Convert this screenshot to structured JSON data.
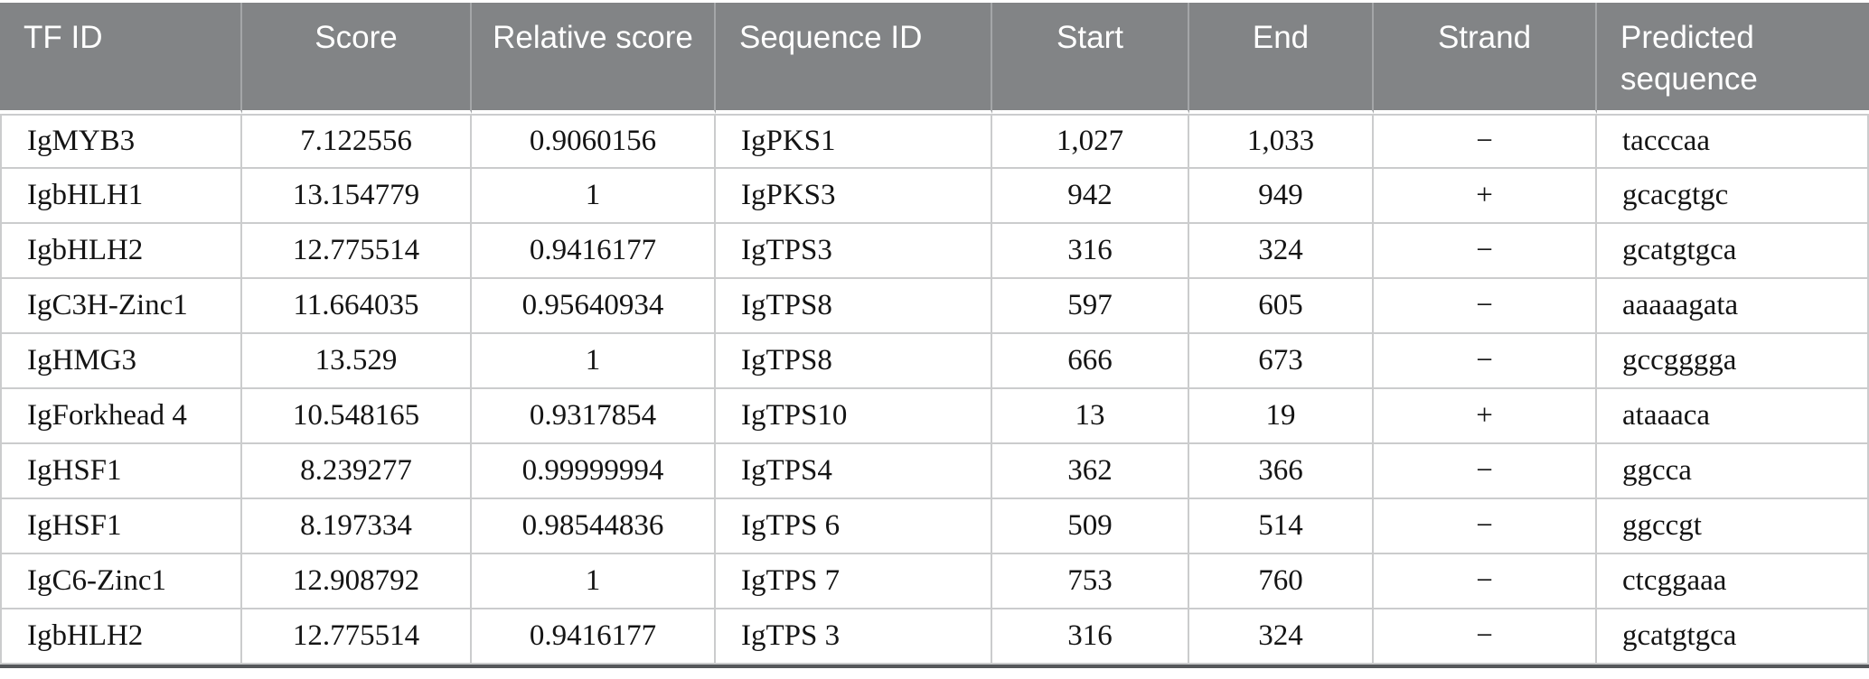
{
  "table": {
    "headers": [
      "TF ID",
      "Score",
      "Relative score",
      "Sequence ID",
      "Start",
      "End",
      "Strand",
      "Predicted sequence"
    ],
    "column_alignment": [
      "left",
      "center",
      "center",
      "left",
      "center",
      "center",
      "center",
      "left"
    ],
    "rows": [
      [
        "IgMYB3",
        "7.122556",
        "0.9060156",
        "IgPKS1",
        "1,027",
        "1,033",
        "−",
        "tacccaa"
      ],
      [
        "IgbHLH1",
        "13.154779",
        "1",
        "IgPKS3",
        "942",
        "949",
        "+",
        "gcacgtgc"
      ],
      [
        "IgbHLH2",
        "12.775514",
        "0.9416177",
        "IgTPS3",
        "316",
        "324",
        "−",
        "gcatgtgca"
      ],
      [
        "IgC3H-Zinc1",
        "11.664035",
        "0.95640934",
        "IgTPS8",
        "597",
        "605",
        "−",
        "aaaaagata"
      ],
      [
        "IgHMG3",
        "13.529",
        "1",
        "IgTPS8",
        "666",
        "673",
        "−",
        "gccgggga"
      ],
      [
        "IgForkhead 4",
        "10.548165",
        "0.9317854",
        "IgTPS10",
        "13",
        "19",
        "+",
        "ataaaca"
      ],
      [
        "IgHSF1",
        "8.239277",
        "0.99999994",
        "IgTPS4",
        "362",
        "366",
        "−",
        "ggcca"
      ],
      [
        "IgHSF1",
        "8.197334",
        "0.98544836",
        "IgTPS 6",
        "509",
        "514",
        "−",
        "ggccgt"
      ],
      [
        "IgC6-Zinc1",
        "12.908792",
        "1",
        "IgTPS 7",
        "753",
        "760",
        "−",
        "ctcggaaa"
      ],
      [
        "IgbHLH2",
        "12.775514",
        "0.9416177",
        "IgTPS 3",
        "316",
        "324",
        "−",
        "gcatgtgca"
      ]
    ]
  },
  "colors": {
    "header_bg": "#828486",
    "header_divider": "#a4a6a8",
    "grid_line": "#cbcccd",
    "bottom_rule": "#55575a",
    "header_text": "#ffffff",
    "body_text": "#141414"
  }
}
